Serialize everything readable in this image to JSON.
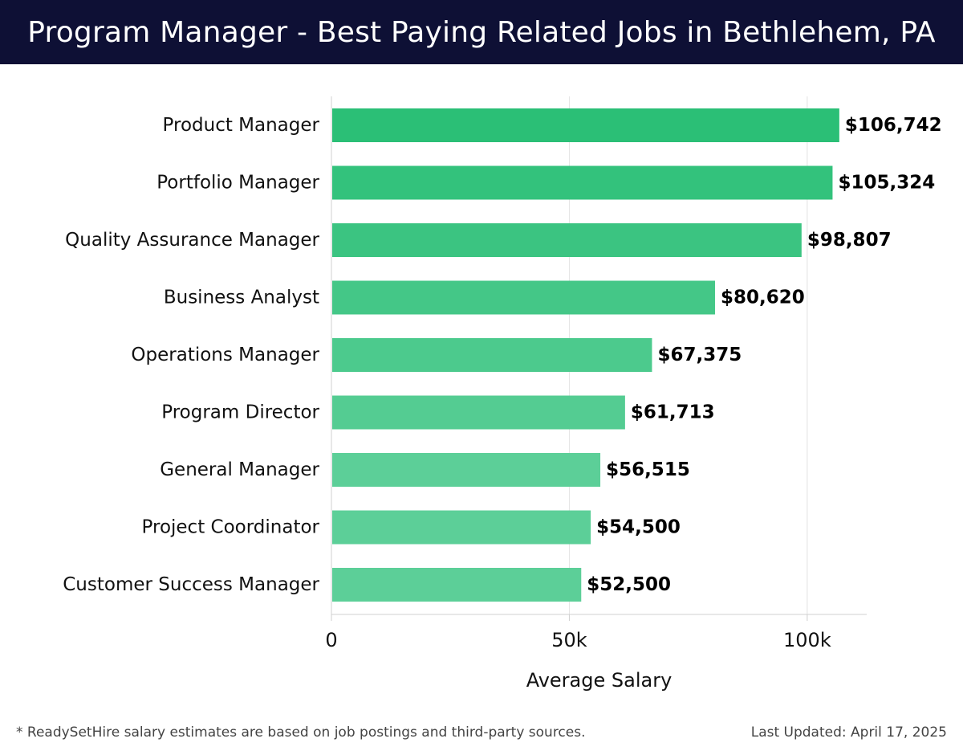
{
  "header": {
    "title": "Program Manager - Best Paying Related Jobs in Bethlehem, PA"
  },
  "footer": {
    "note": "* ReadySetHire salary estimates are based on job postings and third-party sources.",
    "updated": "Last Updated: April 17, 2025"
  },
  "colors": {
    "header_bg": "#0e1035",
    "bar_dark": "#2bbf76",
    "bar_light": "#5ccf98"
  },
  "chart_data": {
    "type": "bar",
    "orientation": "horizontal",
    "categories": [
      "Product Manager",
      "Portfolio Manager",
      "Quality Assurance Manager",
      "Business Analyst",
      "Operations Manager",
      "Program Director",
      "General Manager",
      "Project Coordinator",
      "Customer Success Manager"
    ],
    "values": [
      106742,
      105324,
      98807,
      80620,
      67375,
      61713,
      56515,
      54500,
      52500
    ],
    "value_labels": [
      "$106,742",
      "$105,324",
      "$98,807",
      "$80,620",
      "$67,375",
      "$61,713",
      "$56,515",
      "$54,500",
      "$52,500"
    ],
    "xlabel": "Average Salary",
    "ylabel": "",
    "xlim": [
      0,
      112500
    ],
    "xticks": [
      0,
      50000,
      100000
    ],
    "xtick_labels": [
      "0",
      "50k",
      "100k"
    ],
    "grid": "vertical"
  }
}
